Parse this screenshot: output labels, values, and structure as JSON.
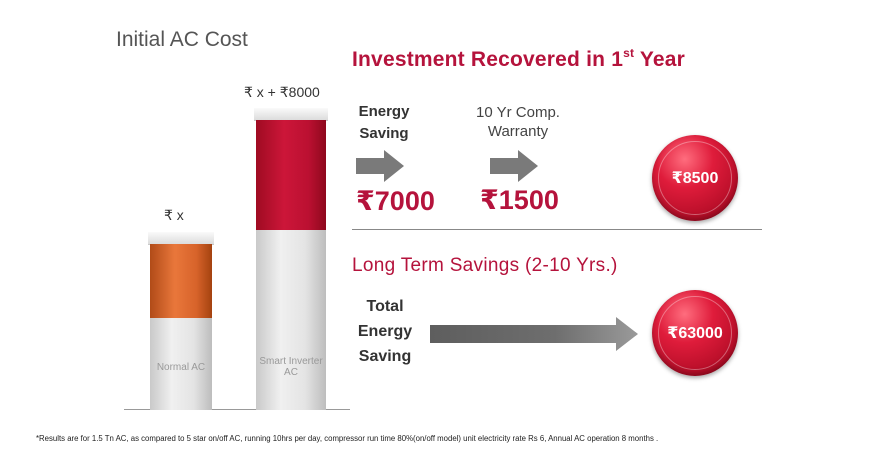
{
  "initial_section": {
    "title": "Initial AC Cost",
    "normal_price": "₹ x",
    "smart_price": "₹ x + ₹8000",
    "normal_name": "Normal AC",
    "smart_name": "Smart Inverter AC"
  },
  "investment_section": {
    "title": "Investment Recovered in 1",
    "title_sup": "st",
    "title_end": " Year",
    "energy_label": "Energy Saving",
    "warranty_label": "10 Yr Comp. Warranty",
    "energy_amount": "₹7000",
    "warranty_amount": "₹1500",
    "total_badge": "₹8500"
  },
  "long_term_section": {
    "title": "Long Term Savings (2-10 Yrs.)",
    "label": "Total Energy Saving",
    "total_badge": "₹63000"
  },
  "footnote": "*Results are for 1.5 Tn AC, as compared to 5 star on/off AC, running 10hrs per day, compressor run time 80%(on/off model) unit electricity rate Rs 6, Annual AC operation 8 months .",
  "colors": {
    "accent": "#b5133c",
    "normal_bar": "#e9773b",
    "smart_bar": "#cc1639",
    "arrow": "#7a7a7a"
  }
}
